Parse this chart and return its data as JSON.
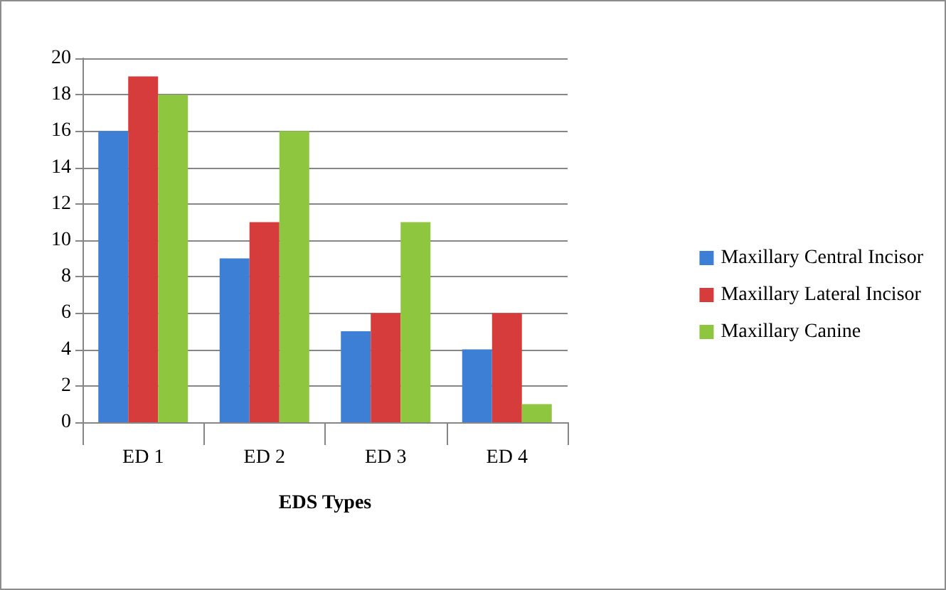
{
  "chart_data": {
    "type": "bar",
    "xlabel": "EDS Types",
    "categories": [
      "ED 1",
      "ED 2",
      "ED 3",
      "ED 4"
    ],
    "series": [
      {
        "name": "Maxillary Central Incisor",
        "color": "#3d7fd4",
        "values": [
          16,
          9,
          5,
          4
        ]
      },
      {
        "name": "Maxillary Lateral Incisor",
        "color": "#d63c3c",
        "values": [
          19,
          11,
          6,
          6
        ]
      },
      {
        "name": "Maxillary Canine",
        "color": "#8fc640",
        "values": [
          18,
          16,
          11,
          1
        ]
      }
    ],
    "ylim": [
      0,
      20
    ],
    "yticks": [
      0,
      2,
      4,
      6,
      8,
      10,
      12,
      14,
      16,
      18,
      20
    ],
    "grid": "y",
    "legend": "right"
  }
}
